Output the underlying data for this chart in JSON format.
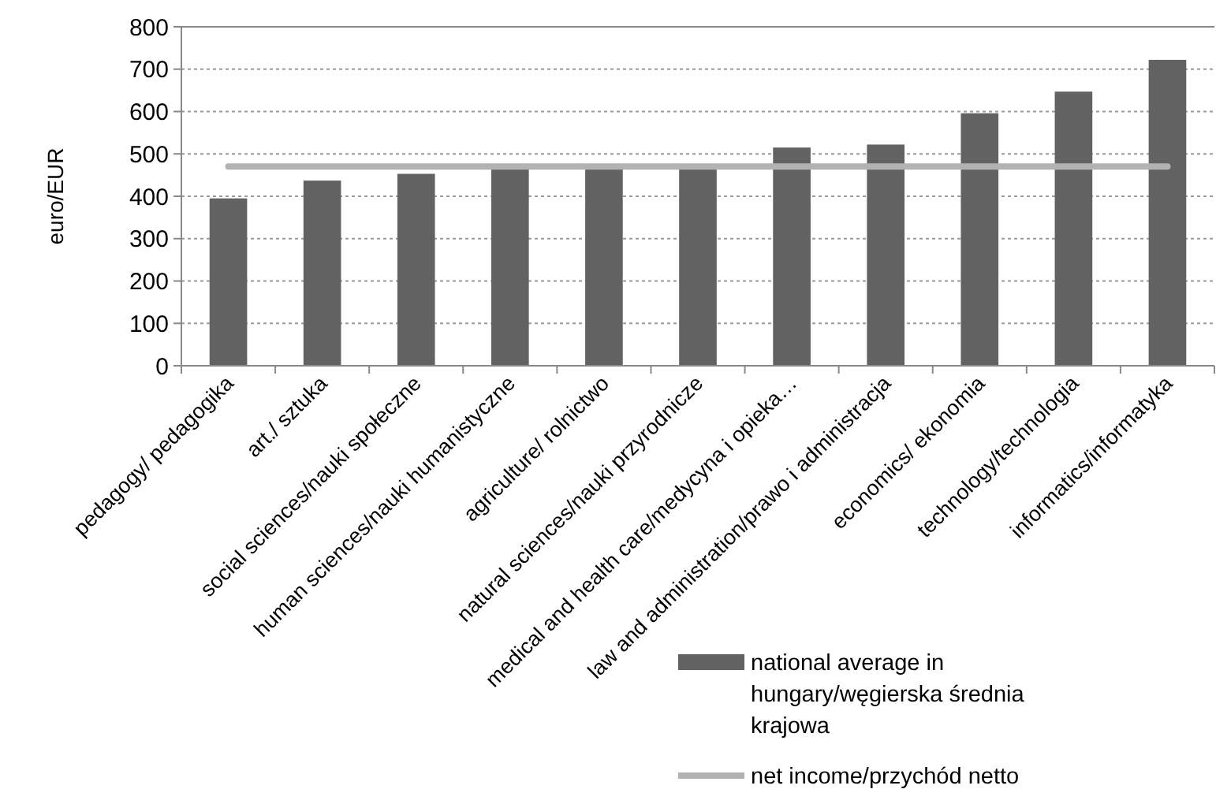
{
  "chart_data": {
    "type": "bar",
    "ylabel": "euro/EUR",
    "categories": [
      "pedagogy/ pedagogika",
      "art./ sztuka",
      "social sciences/nauki społeczne",
      "human sciences/nauki humanistyczne",
      "agriculture/ rolnictwo",
      "natural sciences/nauki przyrodnicze",
      "medical and health care/medycyna i opieka…",
      "law and administration/prawo i administracja",
      "economics/ ekonomia",
      "technology/technologia",
      "informatics/informatyka"
    ],
    "series": [
      {
        "name": "national average in hungary/węgierska średnia krajowa",
        "color": "#626262",
        "values": [
          395,
          437,
          453,
          465,
          465,
          465,
          515,
          522,
          596,
          647,
          722
        ]
      },
      {
        "name": "net income/przychód netto",
        "type": "line",
        "color": "#b2b2b2",
        "values": [
          470,
          470,
          470,
          470,
          470,
          470,
          470,
          470,
          470,
          470,
          470
        ]
      }
    ],
    "ylim": [
      0,
      800
    ],
    "yticks": [
      0,
      100,
      200,
      300,
      400,
      500,
      600,
      700,
      800
    ],
    "grid": "y",
    "legend": "bottom right"
  }
}
